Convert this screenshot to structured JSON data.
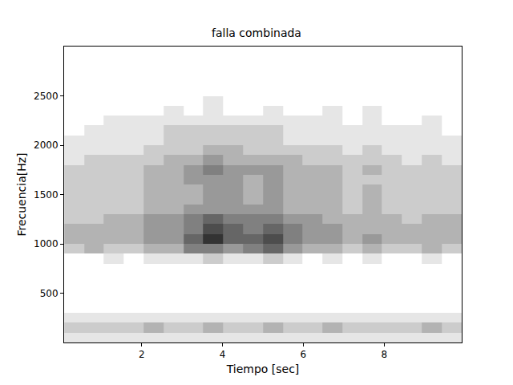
{
  "chart_data": {
    "type": "heatmap",
    "title": "falla combinada",
    "x_label": "Tiempo [sec]",
    "y_label": "Frecuencia[Hz]",
    "x": [
      0.33,
      0.82,
      1.31,
      1.8,
      2.3,
      2.79,
      3.28,
      3.77,
      4.26,
      4.75,
      5.25,
      5.74,
      6.23,
      6.72,
      7.21,
      7.7,
      8.2,
      8.69,
      9.18,
      9.67
    ],
    "y": [
      50,
      150,
      250,
      350,
      450,
      550,
      650,
      750,
      850,
      950,
      1050,
      1150,
      1250,
      1350,
      1450,
      1550,
      1650,
      1750,
      1850,
      1950,
      2050,
      2150,
      2250,
      2350,
      2450,
      2550,
      2650,
      2750,
      2850,
      2950
    ],
    "cells": [
      [
        1,
        1,
        1,
        1,
        1,
        1,
        1,
        1,
        1,
        1,
        1,
        1,
        1,
        1,
        1,
        1,
        1,
        1,
        1,
        1
      ],
      [
        2,
        2,
        2,
        2,
        3,
        2,
        2,
        3,
        2,
        2,
        3,
        2,
        2,
        3,
        2,
        2,
        2,
        2,
        3,
        2
      ],
      [
        1,
        1,
        1,
        1,
        1,
        1,
        1,
        1,
        1,
        1,
        1,
        1,
        1,
        1,
        1,
        1,
        1,
        1,
        1,
        1
      ],
      [
        0,
        0,
        0,
        0,
        0,
        0,
        0,
        0,
        0,
        0,
        0,
        0,
        0,
        0,
        0,
        0,
        0,
        0,
        0,
        0
      ],
      [
        0,
        0,
        0,
        0,
        0,
        0,
        0,
        0,
        0,
        0,
        0,
        0,
        0,
        0,
        0,
        0,
        0,
        0,
        0,
        0
      ],
      [
        0,
        0,
        0,
        0,
        0,
        0,
        0,
        0,
        0,
        0,
        0,
        0,
        0,
        0,
        0,
        0,
        0,
        0,
        0,
        0
      ],
      [
        0,
        0,
        0,
        0,
        0,
        0,
        0,
        0,
        0,
        0,
        0,
        0,
        0,
        0,
        0,
        0,
        0,
        0,
        0,
        0
      ],
      [
        0,
        0,
        0,
        0,
        0,
        0,
        0,
        0,
        0,
        0,
        0,
        0,
        0,
        0,
        0,
        0,
        0,
        0,
        0,
        0
      ],
      [
        0,
        0,
        1,
        0,
        1,
        1,
        1,
        2,
        1,
        1,
        2,
        1,
        0,
        1,
        0,
        1,
        0,
        0,
        1,
        0
      ],
      [
        2,
        3,
        2,
        2,
        3,
        3,
        5,
        5,
        4,
        5,
        6,
        4,
        3,
        3,
        2,
        3,
        2,
        2,
        3,
        2
      ],
      [
        3,
        3,
        3,
        3,
        4,
        4,
        6,
        8,
        6,
        6,
        7,
        5,
        4,
        4,
        3,
        4,
        3,
        3,
        3,
        3
      ],
      [
        3,
        3,
        3,
        3,
        4,
        4,
        5,
        7,
        6,
        5,
        6,
        5,
        4,
        4,
        3,
        3,
        3,
        3,
        3,
        3
      ],
      [
        2,
        2,
        3,
        3,
        4,
        4,
        5,
        6,
        5,
        5,
        5,
        4,
        4,
        3,
        3,
        3,
        3,
        2,
        3,
        3
      ],
      [
        2,
        2,
        2,
        2,
        3,
        3,
        4,
        4,
        4,
        4,
        4,
        3,
        3,
        3,
        2,
        3,
        2,
        2,
        2,
        2
      ],
      [
        2,
        2,
        2,
        2,
        3,
        3,
        3,
        4,
        4,
        3,
        4,
        3,
        3,
        3,
        2,
        3,
        2,
        2,
        2,
        2
      ],
      [
        2,
        2,
        2,
        2,
        3,
        3,
        3,
        4,
        4,
        3,
        4,
        3,
        3,
        3,
        2,
        3,
        2,
        2,
        2,
        2
      ],
      [
        2,
        2,
        2,
        2,
        3,
        3,
        4,
        4,
        4,
        3,
        4,
        3,
        3,
        3,
        2,
        2,
        2,
        2,
        2,
        2
      ],
      [
        2,
        2,
        2,
        2,
        3,
        3,
        4,
        5,
        4,
        4,
        4,
        3,
        3,
        3,
        2,
        3,
        2,
        2,
        2,
        2
      ],
      [
        1,
        2,
        2,
        2,
        2,
        3,
        3,
        4,
        3,
        3,
        3,
        3,
        2,
        2,
        2,
        2,
        2,
        1,
        2,
        1
      ],
      [
        1,
        1,
        1,
        1,
        2,
        2,
        2,
        3,
        3,
        2,
        2,
        2,
        2,
        2,
        1,
        2,
        1,
        1,
        1,
        1
      ],
      [
        1,
        1,
        1,
        1,
        1,
        2,
        2,
        2,
        2,
        2,
        2,
        1,
        1,
        1,
        1,
        1,
        1,
        1,
        1,
        1
      ],
      [
        0,
        1,
        1,
        1,
        1,
        2,
        2,
        2,
        2,
        2,
        2,
        1,
        1,
        1,
        1,
        1,
        1,
        1,
        1,
        0
      ],
      [
        0,
        0,
        1,
        1,
        1,
        1,
        1,
        1,
        1,
        1,
        1,
        1,
        1,
        1,
        0,
        1,
        0,
        0,
        1,
        0
      ],
      [
        0,
        0,
        0,
        0,
        0,
        1,
        0,
        1,
        0,
        0,
        1,
        0,
        0,
        1,
        0,
        1,
        0,
        0,
        0,
        0
      ],
      [
        0,
        0,
        0,
        0,
        0,
        0,
        0,
        1,
        0,
        0,
        0,
        0,
        0,
        0,
        0,
        0,
        0,
        0,
        0,
        0
      ],
      [
        0,
        0,
        0,
        0,
        0,
        0,
        0,
        0,
        0,
        0,
        0,
        0,
        0,
        0,
        0,
        0,
        0,
        0,
        0,
        0
      ],
      [
        0,
        0,
        0,
        0,
        0,
        0,
        0,
        0,
        0,
        0,
        0,
        0,
        0,
        0,
        0,
        0,
        0,
        0,
        0,
        0
      ],
      [
        0,
        0,
        0,
        0,
        0,
        0,
        0,
        0,
        0,
        0,
        0,
        0,
        0,
        0,
        0,
        0,
        0,
        0,
        0,
        0
      ],
      [
        0,
        0,
        0,
        0,
        0,
        0,
        0,
        0,
        0,
        0,
        0,
        0,
        0,
        0,
        0,
        0,
        0,
        0,
        0,
        0
      ],
      [
        0,
        0,
        0,
        0,
        0,
        0,
        0,
        0,
        0,
        0,
        0,
        0,
        0,
        0,
        0,
        0,
        0,
        0,
        0,
        0
      ]
    ],
    "zlim": [
      0,
      10
    ],
    "xlim": [
      0.08,
      9.92
    ],
    "ylim": [
      0,
      3000
    ],
    "xticks": [
      2,
      4,
      6,
      8
    ],
    "yticks": [
      500,
      1000,
      1500,
      2000,
      2500
    ]
  }
}
